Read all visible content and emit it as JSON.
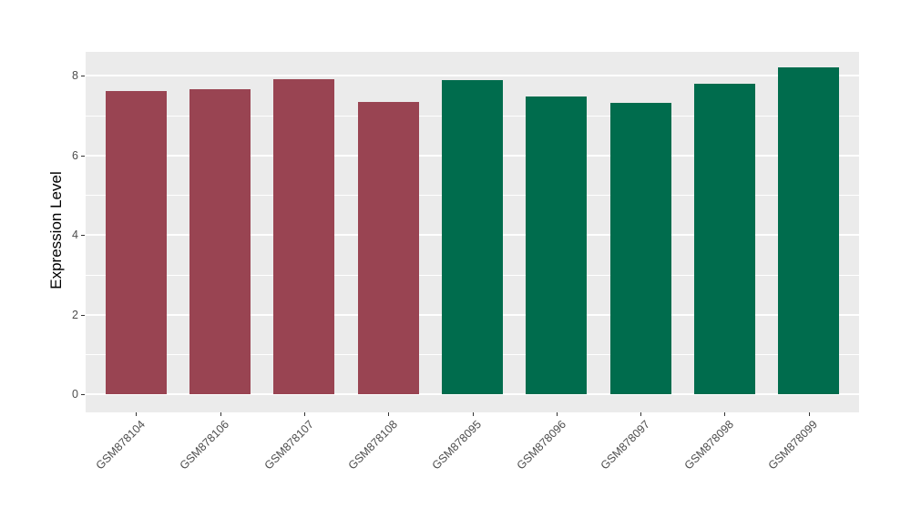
{
  "chart_data": {
    "type": "bar",
    "title": "",
    "xlabel": "",
    "ylabel": "Expression Level",
    "categories": [
      "GSM878104",
      "GSM878106",
      "GSM878107",
      "GSM878108",
      "GSM878095",
      "GSM878096",
      "GSM878097",
      "GSM878098",
      "GSM878099"
    ],
    "values": [
      7.61,
      7.66,
      7.92,
      7.34,
      7.89,
      7.49,
      7.33,
      7.81,
      8.21
    ],
    "bar_colors": [
      "#994452",
      "#994452",
      "#994452",
      "#994452",
      "#006C4D",
      "#006C4D",
      "#006C4D",
      "#006C4D",
      "#006C4D"
    ],
    "yticks": [
      0,
      2,
      4,
      6,
      8
    ],
    "yticks_minor": [
      1,
      3,
      5,
      7
    ],
    "ylim": [
      0,
      8.6
    ],
    "grid": true,
    "legend": "none",
    "x_label_rotation_deg": 45,
    "panel_background": "#EBEBEB",
    "gridline_color": "#FFFFFF",
    "axis_text_color": "#4D4D4D",
    "axis_title_color": "#000000"
  }
}
